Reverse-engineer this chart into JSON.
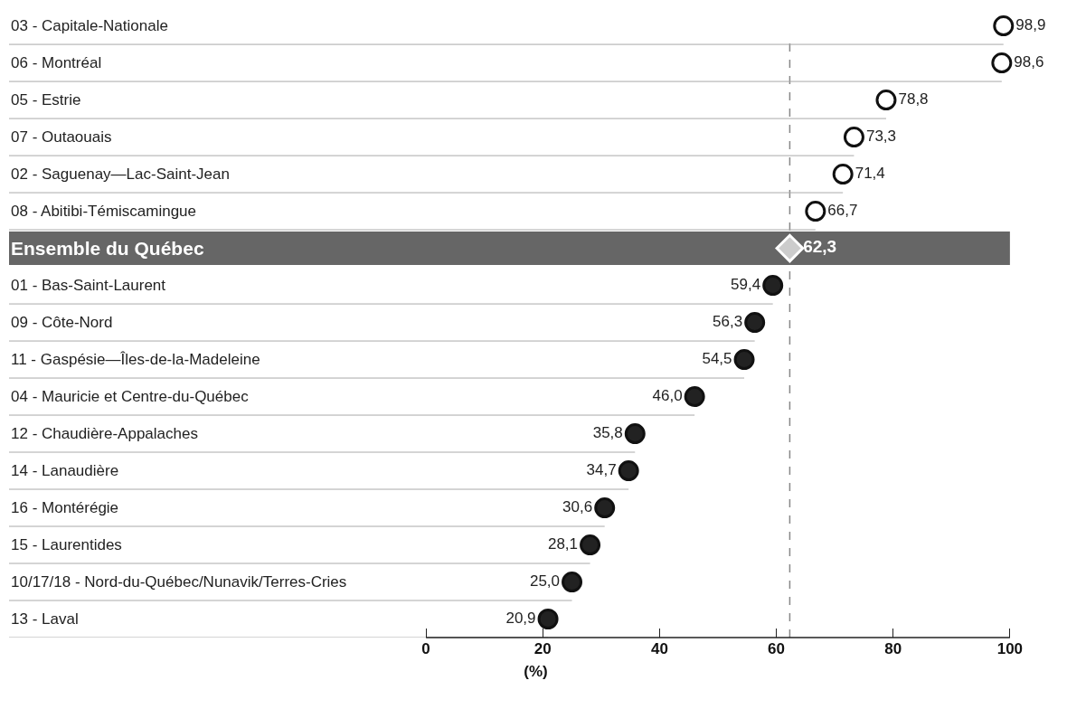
{
  "chart_data": {
    "type": "lollipop",
    "orientation": "horizontal",
    "xlabel": "(%)",
    "categories": [
      "03 - Capitale-Nationale",
      "06 - Montréal",
      "05 - Estrie",
      "07 - Outaouais",
      "02 - Saguenay—Lac-Saint-Jean",
      "08 - Abitibi-Témiscamingue",
      "Ensemble du Québec",
      "01 - Bas-Saint-Laurent",
      "09 - Côte-Nord",
      "11 - Gaspésie—Îles-de-la-Madeleine",
      "04 - Mauricie et Centre-du-Québec",
      "12 - Chaudière-Appalaches",
      "14 - Lanaudière",
      "16 - Montérégie",
      "15 - Laurentides",
      "10/17/18 - Nord-du-Québec/Nunavik/Terres-Cries",
      "13 - Laval"
    ],
    "series": [
      {
        "color": "#ffffff",
        "marker": "circle",
        "values": [
          98.9,
          98.6,
          78.8,
          73.3,
          71.4,
          66.7,
          null,
          null,
          null,
          null,
          null,
          null,
          null,
          null,
          null,
          null,
          null
        ],
        "value_labels": [
          "98,9",
          "98,6",
          "78,8",
          "73,3",
          "71,4",
          "66,7",
          null,
          null,
          null,
          null,
          null,
          null,
          null,
          null,
          null,
          null,
          null
        ]
      },
      {
        "color": "#cccccc",
        "marker": "diamond",
        "values": [
          null,
          null,
          null,
          null,
          null,
          null,
          62.3,
          null,
          null,
          null,
          null,
          null,
          null,
          null,
          null,
          null,
          null
        ],
        "value_labels": [
          null,
          null,
          null,
          null,
          null,
          null,
          "62,3",
          null,
          null,
          null,
          null,
          null,
          null,
          null,
          null,
          null,
          null
        ]
      },
      {
        "color": "#222222",
        "marker": "circle",
        "values": [
          null,
          null,
          null,
          null,
          null,
          null,
          null,
          59.4,
          56.3,
          54.5,
          46.0,
          35.8,
          34.7,
          30.6,
          28.1,
          25.0,
          20.9
        ],
        "value_labels": [
          null,
          null,
          null,
          null,
          null,
          null,
          null,
          "59,4",
          "56,3",
          "54,5",
          "46,0",
          "35,8",
          "34,7",
          "30,6",
          "28,1",
          "25,0",
          "20,9"
        ]
      }
    ],
    "xlim": [
      0,
      100
    ],
    "xticks": [
      0,
      20,
      40,
      60,
      80,
      100
    ],
    "ref_lines": [
      {
        "axis": "x",
        "value": 62.3,
        "color": "#888888",
        "line_style": "dashed"
      }
    ],
    "bands": [
      {
        "axis": "y",
        "from": "Ensemble du Québec",
        "to": "Ensemble du Québec",
        "color": "#666666"
      }
    ],
    "grid": false
  }
}
